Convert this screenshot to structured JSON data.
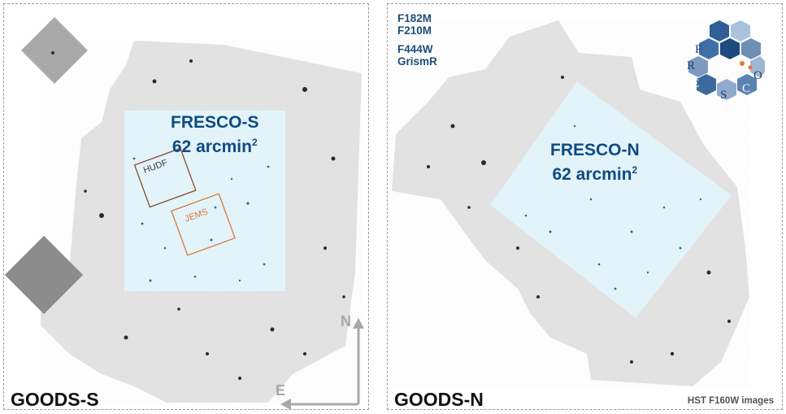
{
  "goods_s": {
    "field_label": "GOODS-S",
    "fresco_name": "FRESCO-S",
    "fresco_area": "62 arcmin",
    "fresco_area_exp": "2",
    "hudf_label": "HUDF",
    "jems_label": "JEMS",
    "compass_north": "N",
    "compass_east": "E"
  },
  "goods_n": {
    "field_label": "GOODS-N",
    "fresco_name": "FRESCO-N",
    "fresco_area": "62 arcmin",
    "fresco_area_exp": "2",
    "filters": [
      "F182M",
      "F210M",
      "F444W",
      "GrismR"
    ],
    "credit": "HST F160W images"
  },
  "logo": {
    "letters": [
      "F",
      "R",
      "E",
      "S",
      "C",
      "O"
    ]
  },
  "colors": {
    "hst_mosaic": "#e3e3e3",
    "fresco_footprint": "#e2f3fa",
    "fresco_text": "#0f4a82",
    "hudf_box": "#8a4a2a",
    "jems_box": "#d9783a",
    "compass": "#a8a8a8"
  }
}
